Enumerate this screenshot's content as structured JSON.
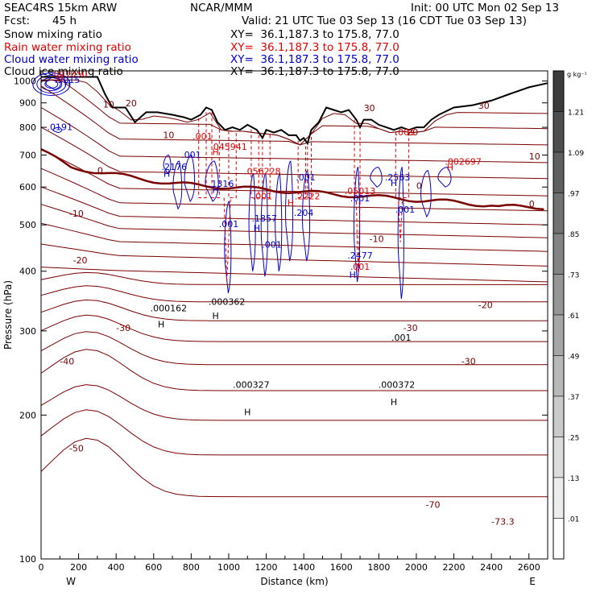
{
  "header": {
    "model": "SEAC4RS 15km ARW",
    "center": "NCAR/MMM",
    "init": "Init: 00 UTC Mon 02 Sep 13",
    "fcst_label": "Fcst:",
    "fcst_value": "45 h",
    "valid": "Valid: 21 UTC Tue 03 Sep 13 (16 CDT Tue 03 Sep 13)"
  },
  "fields": [
    {
      "label": "Snow mixing ratio",
      "xy": "XY=  36.1,187.3 to 175.8, 77.0",
      "color": "#000000"
    },
    {
      "label": "Rain water mixing ratio",
      "xy": "XY=  36.1,187.3 to 175.8, 77.0",
      "color": "#e60000"
    },
    {
      "label": "Cloud water mixing ratio",
      "xy": "XY=  36.1,187.3 to 175.8, 77.0",
      "color": "#0000cc"
    },
    {
      "label": "Cloud ice mixing ratio",
      "xy": "XY=  36.1,187.3 to 175.8, 77.0",
      "color": "#000000"
    }
  ],
  "colorbar": {
    "unit": "g kg⁻¹",
    "ticks": [
      "1.21",
      "1.09",
      ".97",
      ".85",
      ".73",
      ".61",
      ".49",
      ".37",
      ".25",
      ".13",
      ".01"
    ]
  },
  "chart_data": {
    "type": "cross-section",
    "xlabel": "Distance (km)",
    "ylabel": "Pressure (hPa)",
    "xlim": [
      0,
      2700
    ],
    "ylim": [
      1050,
      100
    ],
    "x_ticks": [
      "0",
      "200",
      "400",
      "600",
      "800",
      "1000",
      "1200",
      "1400",
      "1600",
      "1800",
      "2000",
      "2200",
      "2400",
      "2600"
    ],
    "y_ticks": [
      "1000",
      "900",
      "800",
      "700",
      "600",
      "500",
      "400",
      "300",
      "200",
      "100"
    ],
    "x_end_labels": {
      "left": "W",
      "right": "E"
    },
    "terrain": {
      "x": [
        0,
        300,
        340,
        380,
        450,
        500,
        560,
        620,
        700,
        760,
        800,
        850,
        880,
        910,
        940,
        980,
        1020,
        1060,
        1100,
        1150,
        1180,
        1200,
        1240,
        1280,
        1320,
        1360,
        1380,
        1400,
        1420,
        1440,
        1480,
        1520,
        1560,
        1600,
        1640,
        1680,
        1700,
        1720,
        1760,
        1800,
        1840,
        1880,
        1920,
        1960,
        2000,
        2040,
        2080,
        2120,
        2200,
        2300,
        2400,
        2500,
        2600,
        2700
      ],
      "p": [
        1020,
        1020,
        940,
        880,
        880,
        820,
        860,
        860,
        850,
        840,
        830,
        850,
        880,
        870,
        820,
        790,
        800,
        790,
        810,
        790,
        760,
        790,
        780,
        790,
        770,
        770,
        750,
        760,
        740,
        790,
        820,
        880,
        870,
        860,
        870,
        830,
        800,
        830,
        830,
        810,
        800,
        790,
        800,
        790,
        800,
        800,
        830,
        850,
        880,
        890,
        910,
        940,
        970,
        990
      ]
    },
    "contour_label_values": [
      "-70",
      "-73.3",
      "-50",
      "-40",
      "-30",
      "-30",
      "-30",
      "-20",
      "-20",
      "-10",
      "-10",
      "0",
      "0",
      "0",
      "10",
      "10",
      "10",
      "20",
      "20",
      "30",
      "30"
    ],
    "extrema_labels": [
      {
        "text": ".000327",
        "x": 1120,
        "p": 228,
        "color": "#000000"
      },
      {
        "text": ".000372",
        "x": 1895,
        "p": 228,
        "color": "#000000"
      },
      {
        "text": ".001",
        "x": 1920,
        "p": 286,
        "color": "#000000"
      },
      {
        "text": ".000162",
        "x": 680,
        "p": 330,
        "color": "#000000"
      },
      {
        "text": ".000362",
        "x": 990,
        "p": 340,
        "color": "#000000"
      },
      {
        "text": ".001",
        "x": 1700,
        "p": 403,
        "color": "#e60000"
      },
      {
        "text": ".2477",
        "x": 1700,
        "p": 425,
        "color": "#0000cc"
      },
      {
        "text": ".001",
        "x": 1230,
        "p": 448,
        "color": "#0000cc"
      },
      {
        "text": ".001",
        "x": 1000,
        "p": 495,
        "color": "#0000cc"
      },
      {
        "text": ".1857",
        "x": 1190,
        "p": 508,
        "color": "#0000cc"
      },
      {
        "text": ".204",
        "x": 1400,
        "p": 522,
        "color": "#0000cc"
      },
      {
        "text": ".001",
        "x": 1940,
        "p": 530,
        "color": "#0000cc"
      },
      {
        "text": ".001",
        "x": 1180,
        "p": 566,
        "color": "#e60000"
      },
      {
        "text": ".2222",
        "x": 1420,
        "p": 566,
        "color": "#e60000"
      },
      {
        "text": ".001",
        "x": 1700,
        "p": 560,
        "color": "#0000cc"
      },
      {
        "text": ".05013",
        "x": 1700,
        "p": 580,
        "color": "#e60000"
      },
      {
        "text": ".1316",
        "x": 960,
        "p": 600,
        "color": "#0000cc"
      },
      {
        "text": ".001",
        "x": 1410,
        "p": 620,
        "color": "#0000cc"
      },
      {
        "text": ".2563",
        "x": 1900,
        "p": 620,
        "color": "#0000cc"
      },
      {
        "text": ".056228",
        "x": 1180,
        "p": 638,
        "color": "#e60000"
      },
      {
        "text": ".2176",
        "x": 710,
        "p": 652,
        "color": "#0000cc"
      },
      {
        "text": ".001",
        "x": 800,
        "p": 690,
        "color": "#0000cc"
      },
      {
        "text": ".002697",
        "x": 2250,
        "p": 668,
        "color": "#e60000"
      },
      {
        "text": ".045941",
        "x": 1000,
        "p": 718,
        "color": "#e60000"
      },
      {
        "text": ".001",
        "x": 860,
        "p": 755,
        "color": "#e60000"
      },
      {
        "text": ".0191",
        "x": 100,
        "p": 790,
        "color": "#0000cc"
      },
      {
        "text": ".001",
        "x": 1940,
        "p": 770,
        "color": "#e60000"
      },
      {
        "text": ".5015",
        "x": 140,
        "p": 990,
        "color": "#0000cc"
      },
      {
        "text": ".001050",
        "x": 150,
        "p": 1020,
        "color": "#e60000"
      }
    ],
    "h_markers": [
      {
        "x": 1100,
        "p": 200,
        "color": "#000000"
      },
      {
        "x": 1880,
        "p": 210,
        "color": "#000000"
      },
      {
        "x": 640,
        "p": 305,
        "color": "#000000"
      },
      {
        "x": 930,
        "p": 318,
        "color": "#000000"
      },
      {
        "x": 1660,
        "p": 387,
        "color": "#0000cc"
      },
      {
        "x": 1150,
        "p": 485,
        "color": "#0000cc"
      },
      {
        "x": 1330,
        "p": 548,
        "color": "#e60000"
      },
      {
        "x": 930,
        "p": 583,
        "color": "#0000cc"
      },
      {
        "x": 670,
        "p": 630,
        "color": "#0000cc"
      },
      {
        "x": 1880,
        "p": 603,
        "color": "#0000cc"
      },
      {
        "x": 2180,
        "p": 650,
        "color": "#e60000"
      },
      {
        "x": 930,
        "p": 700,
        "color": "#e60000"
      },
      {
        "x": 140,
        "p": 975,
        "color": "#0000cc"
      },
      {
        "x": 100,
        "p": 1000,
        "color": "#e60000"
      }
    ]
  }
}
